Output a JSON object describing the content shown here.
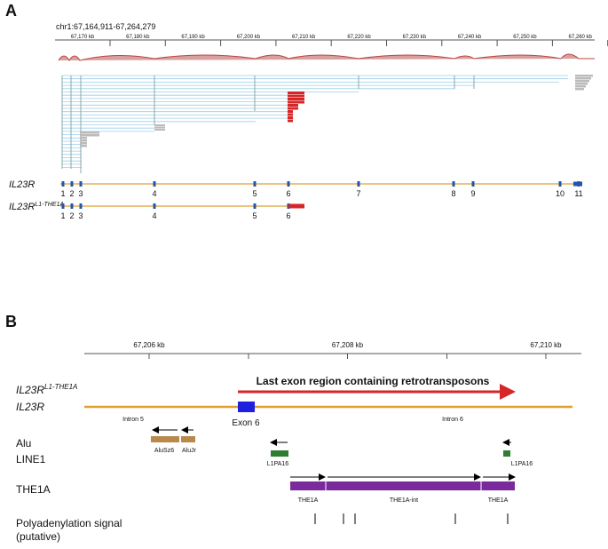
{
  "panel_a": {
    "label": "A",
    "locus": "chr1:67,164,911-67,264,279",
    "axis_labels": [
      "67,170 kb",
      "67,180 kb",
      "67,190 kb",
      "67,200 kb",
      "67,210 kb",
      "67,220 kb",
      "67,230 kb",
      "67,240 kb",
      "67,250 kb",
      "67,260 kb"
    ],
    "tracks": [
      {
        "name": "IL23R",
        "exons": [
          "1",
          "2",
          "3",
          "4",
          "5",
          "6",
          "7",
          "8",
          "9",
          "10",
          "11"
        ]
      },
      {
        "name": "IL23R",
        "superscript": "L1-THE1A",
        "exons": [
          "1",
          "2",
          "3",
          "4",
          "5",
          "6"
        ]
      }
    ]
  },
  "panel_b": {
    "label": "B",
    "axis_labels": [
      "67,206 kb",
      "67,208 kb",
      "67,210 kb"
    ],
    "gene_names": [
      {
        "name": "IL23R",
        "superscript": "L1-THE1A"
      },
      {
        "name": "IL23R"
      }
    ],
    "region_label": "Last exon region containing retrotransposons",
    "gene_labels": [
      "Intron 5",
      "Exon 6",
      "Intron 6"
    ],
    "families": [
      "Alu",
      "LINE1",
      "THE1A"
    ],
    "alu": [
      "AluSz6",
      "AluJr"
    ],
    "line1": [
      "L1PA16",
      "L1PA16"
    ],
    "the1a": [
      "THE1A",
      "THE1A-int",
      "THE1A"
    ],
    "polya": [
      "Polyadenylation signal",
      "(putative)"
    ]
  }
}
